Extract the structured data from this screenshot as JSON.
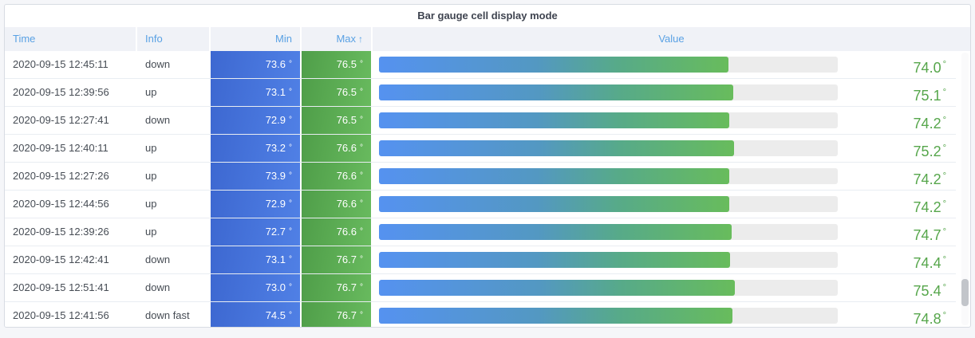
{
  "panel": {
    "title": "Bar gauge cell display mode"
  },
  "table": {
    "columns": [
      {
        "key": "time",
        "label": "Time"
      },
      {
        "key": "info",
        "label": "Info"
      },
      {
        "key": "min",
        "label": "Min"
      },
      {
        "key": "max",
        "label": "Max",
        "sorted": "ascending",
        "sort_icon": "↑"
      },
      {
        "key": "value",
        "label": "Value"
      }
    ],
    "unit": "°",
    "gauge": {
      "min": 0,
      "max": 97.2,
      "track_color": "#ececec"
    },
    "rows": [
      {
        "time": "2020-09-15 12:45:11",
        "info": "down",
        "min": "73.6",
        "max": "76.5",
        "value": "74.0",
        "pct": 76.1
      },
      {
        "time": "2020-09-15 12:39:56",
        "info": "up",
        "min": "73.1",
        "max": "76.5",
        "value": "75.1",
        "pct": 77.3
      },
      {
        "time": "2020-09-15 12:27:41",
        "info": "down",
        "min": "72.9",
        "max": "76.5",
        "value": "74.2",
        "pct": 76.3
      },
      {
        "time": "2020-09-15 12:40:11",
        "info": "up",
        "min": "73.2",
        "max": "76.6",
        "value": "75.2",
        "pct": 77.4
      },
      {
        "time": "2020-09-15 12:27:26",
        "info": "up",
        "min": "73.9",
        "max": "76.6",
        "value": "74.2",
        "pct": 76.3
      },
      {
        "time": "2020-09-15 12:44:56",
        "info": "up",
        "min": "72.9",
        "max": "76.6",
        "value": "74.2",
        "pct": 76.3
      },
      {
        "time": "2020-09-15 12:39:26",
        "info": "up",
        "min": "72.7",
        "max": "76.6",
        "value": "74.7",
        "pct": 76.9
      },
      {
        "time": "2020-09-15 12:42:41",
        "info": "down",
        "min": "73.1",
        "max": "76.7",
        "value": "74.4",
        "pct": 76.5
      },
      {
        "time": "2020-09-15 12:51:41",
        "info": "down",
        "min": "73.0",
        "max": "76.7",
        "value": "75.4",
        "pct": 77.6
      },
      {
        "time": "2020-09-15 12:41:56",
        "info": "down fast",
        "min": "74.5",
        "max": "76.7",
        "value": "74.8",
        "pct": 77.0
      }
    ]
  },
  "colors": {
    "header_text": "#59a1e4",
    "min_cell_gradient": [
      "#3d68d1",
      "#5080e5"
    ],
    "max_cell_gradient": [
      "#4f9e49",
      "#68ba5e"
    ],
    "gauge_gradient": [
      "#5592f0",
      "#68bc5c"
    ],
    "value_text": "#56a64b",
    "row_text": "#464c54",
    "panel_bg": "#ffffff",
    "page_bg": "#f5f6f9"
  }
}
